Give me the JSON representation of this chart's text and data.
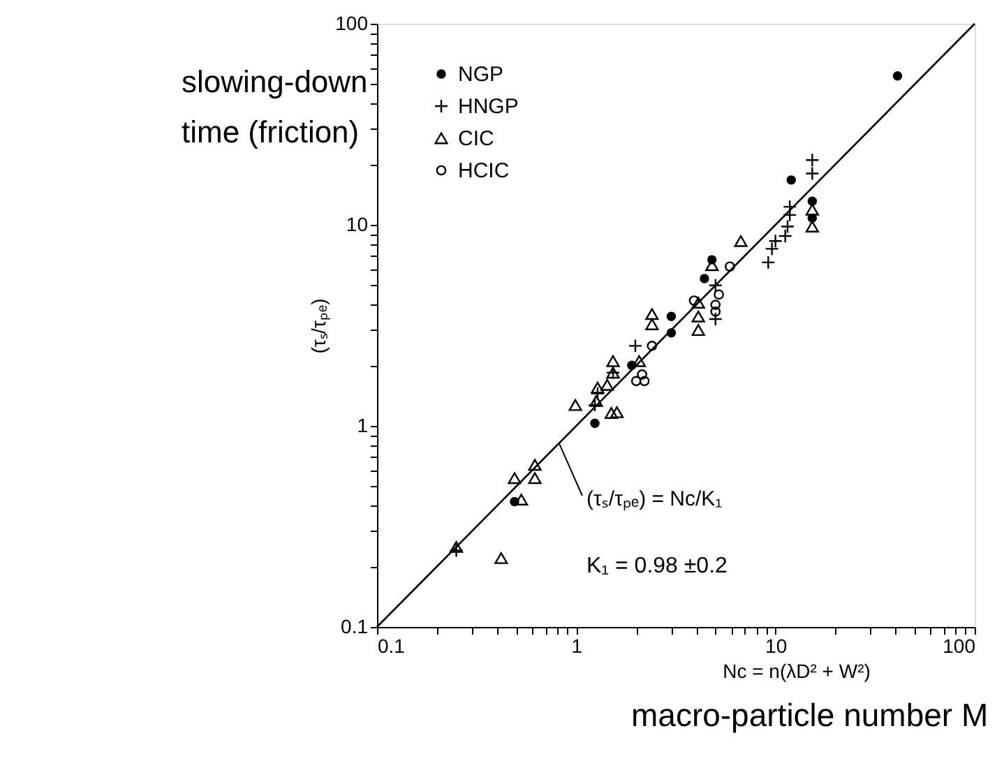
{
  "chart_data": {
    "type": "scatter",
    "xlabel": "Nc = n(λD² + W²)",
    "ylabel": "(τₛ/τₚₑ)",
    "xlim": [
      0.1,
      100
    ],
    "ylim": [
      0.1,
      100
    ],
    "log": "xy",
    "grid": false,
    "legend": "top left",
    "xticks": [
      0.1,
      {
        "value": 0.2,
        "label": null
      },
      {
        "value": 0.3,
        "label": null
      },
      {
        "value": 0.4,
        "label": null
      },
      {
        "value": 0.5,
        "label": null
      },
      {
        "value": 0.6,
        "label": null
      },
      {
        "value": 0.7,
        "label": null
      },
      {
        "value": 0.8,
        "label": null
      },
      {
        "value": 0.9,
        "label": null
      },
      1,
      {
        "value": 2,
        "label": null
      },
      {
        "value": 3,
        "label": null
      },
      {
        "value": 4,
        "label": null
      },
      {
        "value": 5,
        "label": null
      },
      {
        "value": 6,
        "label": null
      },
      {
        "value": 7,
        "label": null
      },
      {
        "value": 8,
        "label": null
      },
      {
        "value": 9,
        "label": null
      },
      10,
      {
        "value": 20,
        "label": null
      },
      {
        "value": 30,
        "label": null
      },
      {
        "value": 40,
        "label": null
      },
      {
        "value": 50,
        "label": null
      },
      {
        "value": 60,
        "label": null
      },
      {
        "value": 70,
        "label": null
      },
      {
        "value": 80,
        "label": null
      },
      {
        "value": 90,
        "label": null
      },
      100
    ],
    "yticks": [
      0.1,
      {
        "value": 0.2,
        "label": null
      },
      {
        "value": 0.3,
        "label": null
      },
      {
        "value": 0.4,
        "label": null
      },
      {
        "value": 0.5,
        "label": null
      },
      {
        "value": 0.6,
        "label": null
      },
      {
        "value": 0.7,
        "label": null
      },
      {
        "value": 0.8,
        "label": null
      },
      {
        "value": 0.9,
        "label": null
      },
      1,
      {
        "value": 2,
        "label": null
      },
      {
        "value": 3,
        "label": null
      },
      {
        "value": 4,
        "label": null
      },
      {
        "value": 5,
        "label": null
      },
      {
        "value": 6,
        "label": null
      },
      {
        "value": 7,
        "label": null
      },
      {
        "value": 8,
        "label": null
      },
      {
        "value": 9,
        "label": null
      },
      10,
      {
        "value": 20,
        "label": null
      },
      {
        "value": 30,
        "label": null
      },
      {
        "value": 40,
        "label": null
      },
      {
        "value": 50,
        "label": null
      },
      {
        "value": 60,
        "label": null
      },
      {
        "value": 70,
        "label": null
      },
      {
        "value": 80,
        "label": null
      },
      {
        "value": 90,
        "label": null
      },
      100
    ],
    "series": [
      {
        "name": "NGP",
        "color": "#000000",
        "marker": "circle",
        "x": [
          41,
          12,
          15.3,
          15.3,
          4.8,
          4.4,
          3.0,
          3.0,
          1.9,
          1.24,
          0.49
        ],
        "values": [
          55,
          16.7,
          13.1,
          10.8,
          6.7,
          5.4,
          3.5,
          2.9,
          2.0,
          1.03,
          0.42
        ]
      },
      {
        "name": "HNGP",
        "color": "#000000",
        "marker": "cross",
        "x": [
          15.3,
          15.3,
          11.8,
          11.8,
          11.5,
          11.2,
          10,
          9.6,
          9.2,
          5.0,
          5.0,
          1.98,
          1.53,
          1.28,
          1.24,
          0.25
        ],
        "values": [
          21,
          18,
          12.3,
          11.2,
          9.8,
          8.8,
          8.3,
          7.6,
          6.5,
          5.0,
          3.4,
          2.5,
          1.84,
          1.45,
          1.27,
          0.24
        ]
      },
      {
        "name": "CIC",
        "color": "#000000",
        "marker": "triangle",
        "x": [
          6.7,
          15.3,
          15.3,
          4.8,
          4.1,
          4.1,
          4.1,
          2.4,
          2.4,
          1.53,
          1.53,
          1.43,
          1.28,
          1.26,
          0.99,
          1.6,
          1.5,
          2.07,
          0.62,
          0.49,
          0.62,
          0.53,
          0.25,
          0.42
        ],
        "values": [
          8.3,
          11.9,
          9.8,
          6.3,
          4.1,
          3.5,
          3.0,
          3.6,
          3.2,
          2.1,
          1.84,
          1.6,
          1.55,
          1.33,
          1.27,
          1.17,
          1.16,
          2.1,
          0.64,
          0.55,
          0.55,
          0.43,
          0.25,
          0.22
        ]
      },
      {
        "name": "HCIC",
        "color": "#000000",
        "marker": "circle",
        "x": [
          5.9,
          5.2,
          5.0,
          5.0,
          3.9,
          2.4,
          2.14,
          2.0,
          2.2
        ],
        "values": [
          6.2,
          4.5,
          4.0,
          3.7,
          4.2,
          2.5,
          1.8,
          1.67,
          1.67
        ]
      },
      {
        "type": "line",
        "color": "#000000",
        "marker": "none",
        "x": [
          0.1,
          100
        ],
        "values": [
          0.1,
          100
        ]
      }
    ],
    "annotations": [
      "slowing-down time (friction)",
      {
        "text": "(τₛ/τₚₑ) = Nc/K₁",
        "x": 0.82,
        "y": 0.82
      },
      "K₁ = 0.98 ±0.2",
      "macro-particle number M"
    ]
  }
}
